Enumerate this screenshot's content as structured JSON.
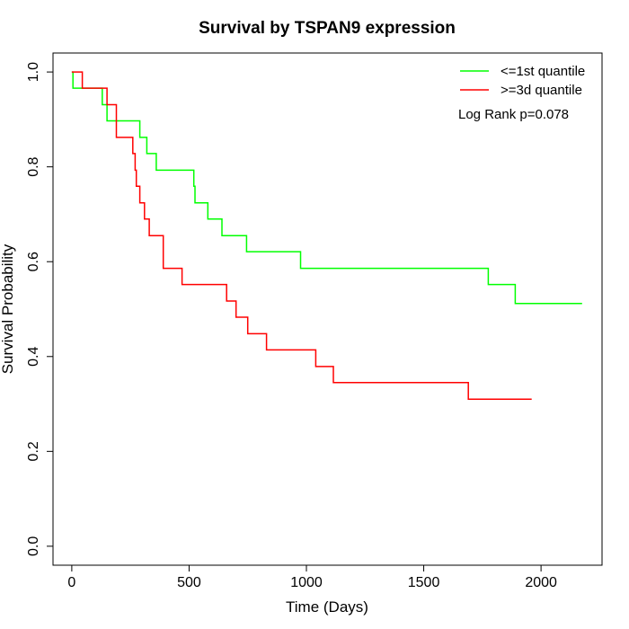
{
  "chart_data": {
    "type": "line",
    "step": true,
    "title": "Survival by TSPAN9 expression",
    "xlabel": "Time (Days)",
    "ylabel": "Survival Probability",
    "xlim": [
      -80,
      2260
    ],
    "ylim": [
      -0.04,
      1.04
    ],
    "x_ticks": [
      0,
      500,
      1000,
      1500,
      2000
    ],
    "x_tick_labels": [
      "0",
      "500",
      "1000",
      "1500",
      "2000"
    ],
    "y_ticks": [
      0.0,
      0.2,
      0.4,
      0.6,
      0.8,
      1.0
    ],
    "y_tick_labels": [
      "0.0",
      "0.2",
      "0.4",
      "0.6",
      "0.8",
      "1.0"
    ],
    "grid": false,
    "legend_position": "top-right",
    "annotation": "Log Rank p=0.078",
    "series": [
      {
        "name": "<=1st quantile",
        "color": "#00ff00",
        "x": [
          0,
          5,
          130,
          150,
          290,
          305,
          320,
          360,
          520,
          525,
          580,
          640,
          745,
          975,
          1775,
          1890,
          2175
        ],
        "y": [
          1.0,
          0.966,
          0.931,
          0.897,
          0.862,
          0.862,
          0.828,
          0.793,
          0.759,
          0.724,
          0.69,
          0.655,
          0.621,
          0.586,
          0.552,
          0.512,
          0.512
        ]
      },
      {
        "name": ">=3d quantile",
        "color": "#ff0000",
        "x": [
          0,
          45,
          150,
          190,
          260,
          270,
          275,
          290,
          300,
          310,
          330,
          390,
          470,
          660,
          700,
          750,
          830,
          1040,
          1115,
          1690,
          1960
        ],
        "y": [
          1.0,
          0.966,
          0.931,
          0.862,
          0.828,
          0.793,
          0.759,
          0.724,
          0.724,
          0.69,
          0.655,
          0.586,
          0.552,
          0.517,
          0.483,
          0.448,
          0.414,
          0.379,
          0.345,
          0.31,
          0.31
        ]
      }
    ]
  }
}
